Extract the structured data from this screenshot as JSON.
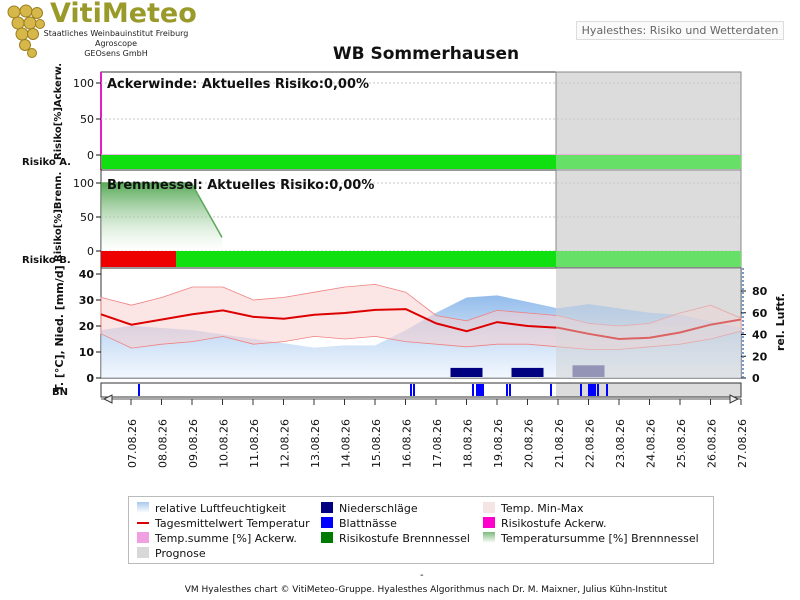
{
  "logo": {
    "title": "VitiMeteo",
    "line1": "Staatliches Weinbauinstitut Freiburg",
    "line2": "Agroscope",
    "line3": "GEOsens GmbH",
    "icon": "grape-cluster-icon"
  },
  "header": {
    "link_label": "Hyalesthes: Risiko und Wetterdaten"
  },
  "chart_data": {
    "type": "line",
    "title": "WB Sommerhausen",
    "x_dates": [
      "07.08.26",
      "08.08.26",
      "09.08.26",
      "10.08.26",
      "11.08.26",
      "12.08.26",
      "13.08.26",
      "14.08.26",
      "15.08.26",
      "16.08.26",
      "17.08.26",
      "18.08.26",
      "19.08.26",
      "20.08.26",
      "21.08.26",
      "22.08.26",
      "23.08.26",
      "24.08.26",
      "25.08.26",
      "26.08.26",
      "27.08.26"
    ],
    "prognosis_start": "21.08.26",
    "panel_ackerwinde": {
      "ylabel": "Risiko[%]Ackerw.",
      "risk_row_label": "Risiko A.",
      "annotation": "Ackerwinde: Aktuelles Risiko:0,00%",
      "yticks": [
        0,
        50,
        100
      ],
      "temperature_sum_percent": [
        0,
        0,
        0,
        0,
        0,
        0,
        0,
        0,
        0,
        0,
        0,
        0,
        0,
        0,
        0,
        0,
        0,
        0,
        0,
        0,
        0
      ],
      "risk_level_segments": [
        {
          "from": "06.08.26",
          "to": "27.08.26",
          "level": "green"
        }
      ]
    },
    "panel_brennnessel": {
      "ylabel": "Risiko[%]Brenn.",
      "risk_row_label": "Risiko B.",
      "annotation": "Brennnessel: Aktuelles Risiko:0,00%",
      "yticks": [
        0,
        50,
        100
      ],
      "temperature_sum_percent": [
        100,
        100,
        20,
        0,
        0,
        0,
        0,
        0,
        0,
        0,
        0,
        0,
        0,
        0,
        0,
        0,
        0,
        0,
        0,
        0,
        0
      ],
      "risk_level_segments": [
        {
          "from": "06.08.26",
          "to": "08.38",
          "level": "red"
        },
        {
          "from": "08.38",
          "to": "27.08.26",
          "level": "green"
        }
      ]
    },
    "panel_weather": {
      "ylabel_left": "T. [°C], Nied. [mm/d]",
      "ylabel_right": "rel. Luftf.",
      "yticks_left": [
        0,
        10,
        20,
        30,
        40
      ],
      "yticks_right": [
        0,
        20,
        40,
        60,
        80
      ],
      "temperature_mean": [
        24.5,
        20.5,
        22.5,
        24.5,
        26,
        23.5,
        22.8,
        24.3,
        25,
        26.2,
        26.5,
        21,
        18,
        21.5,
        20,
        19.3,
        17,
        15,
        15.5,
        17.5,
        20.5,
        22.5
      ],
      "temperature_min": [
        17,
        11.5,
        13,
        14,
        16,
        13,
        14,
        16,
        15,
        16,
        14,
        13,
        12,
        13,
        13,
        12,
        11,
        11,
        12,
        13,
        15,
        18
      ],
      "temperature_max": [
        31,
        28,
        31,
        35,
        35,
        30,
        31,
        33,
        35,
        36,
        33,
        24,
        22,
        26,
        25,
        24,
        21,
        20,
        21,
        25,
        28,
        23
      ],
      "humidity": [
        44,
        48,
        46,
        44,
        40,
        36,
        32,
        28,
        30,
        30,
        44,
        60,
        74,
        76,
        70,
        64,
        68,
        64,
        60,
        58,
        52,
        46
      ],
      "precipitation_mm": [
        {
          "day": "18.08.26",
          "mm": 3.5
        },
        {
          "day": "20.08.26",
          "mm": 3.5
        },
        {
          "day": "22.08.26",
          "mm": 4.5
        }
      ],
      "leaf_wetness_label": "BN"
    },
    "legend": [
      {
        "label": "relative Luftfeuchtigkeit",
        "color": "#a8c8ee"
      },
      {
        "label": "Niederschläge",
        "color": "#000080"
      },
      {
        "label": "Temp. Min-Max",
        "color": "#f4e4e4"
      },
      {
        "label": "Tagesmittelwert Temperatur",
        "color": "#dd0000"
      },
      {
        "label": "Blattnässe",
        "color": "#0000ff"
      },
      {
        "label": "Risikostufe Ackerw.",
        "color": "#ff00cc"
      },
      {
        "label": "Temp.summe [%] Ackerw.",
        "color": "#f0a0e0"
      },
      {
        "label": "Risikostufe Brennnessel",
        "color": "#007a00"
      },
      {
        "label": "Temperatursumme [%] Brennnessel",
        "color": "#7dba7d"
      },
      {
        "label": "Prognose",
        "color": "#d8d8d8"
      }
    ]
  },
  "footer": {
    "dash": "-",
    "text": "VM Hyalesthes chart © VitiMeteo-Gruppe. Hyalesthes Algorithmus nach Dr. M. Maixner, Julius Kühn-Institut"
  }
}
